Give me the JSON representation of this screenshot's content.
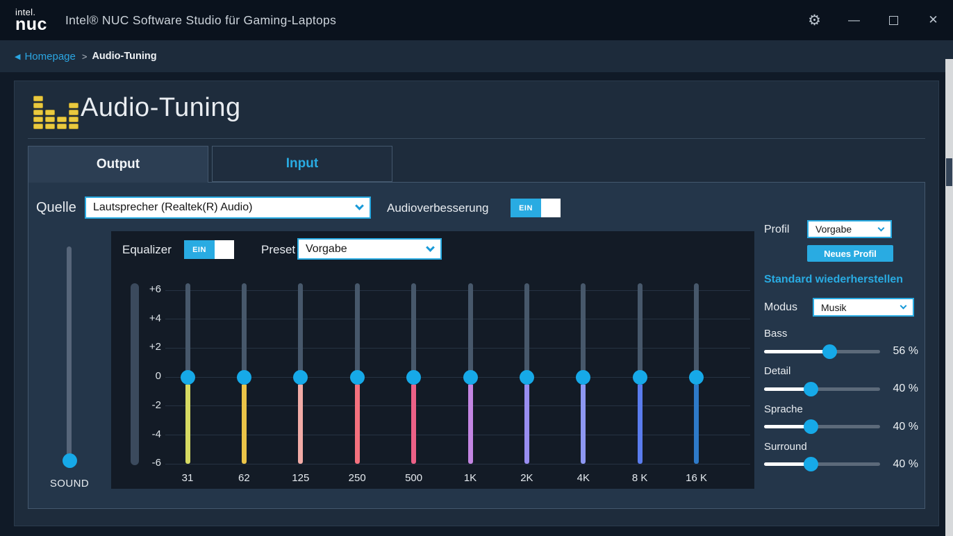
{
  "titlebar": {
    "logo": {
      "top": "intel.",
      "bottom": "nuc"
    },
    "title": "Intel® NUC Software Studio für Gaming-Laptops",
    "controls": {
      "settings_icon": "⚙",
      "minimize_icon": "—",
      "close_icon": "✕"
    }
  },
  "breadcrumb": {
    "back_icon": "◀",
    "home": "Homepage",
    "separator": ">",
    "current": "Audio-Tuning"
  },
  "page": {
    "title": "Audio-Tuning",
    "icon_bars": [
      5,
      3,
      2,
      4
    ]
  },
  "tabs": [
    {
      "label": "Output"
    },
    {
      "label": "Input"
    }
  ],
  "source": {
    "label": "Quelle",
    "value": "Lautsprecher (Realtek(R) Audio)"
  },
  "enhancement": {
    "label": "Audioverbesserung",
    "toggle": "EIN"
  },
  "equalizer": {
    "label": "Equalizer",
    "toggle": "EIN",
    "preset_label": "Preset",
    "preset_value": "Vorgabe",
    "scale_labels": [
      "+6",
      "+4",
      "+2",
      "0",
      "-2",
      "-4",
      "-6"
    ],
    "bands": [
      {
        "freq": "31",
        "db": 0,
        "color": "#d6da62"
      },
      {
        "freq": "62",
        "db": 0,
        "color": "#ebc448"
      },
      {
        "freq": "125",
        "db": 0,
        "color": "#f2aba6"
      },
      {
        "freq": "250",
        "db": 0,
        "color": "#f4717e"
      },
      {
        "freq": "500",
        "db": 0,
        "color": "#ec6187"
      },
      {
        "freq": "1K",
        "db": 0,
        "color": "#c385e2"
      },
      {
        "freq": "2K",
        "db": 0,
        "color": "#988df0"
      },
      {
        "freq": "4K",
        "db": 0,
        "color": "#8d97f2"
      },
      {
        "freq": "8 K",
        "db": 0,
        "color": "#5a7cee"
      },
      {
        "freq": "16 K",
        "db": 0,
        "color": "#2e7ac8"
      }
    ]
  },
  "sound": {
    "label": "SOUND"
  },
  "profile": {
    "label": "Profil",
    "value": "Vorgabe",
    "new_profile_button": "Neues Profil",
    "restore_default": "Standard wiederherstellen",
    "mode_label": "Modus",
    "mode_value": "Musik",
    "sliders": [
      {
        "label": "Bass",
        "value": "56 %",
        "percent": 56
      },
      {
        "label": "Detail",
        "value": "40 %",
        "percent": 40
      },
      {
        "label": "Sprache",
        "value": "40 %",
        "percent": 40
      },
      {
        "label": "Surround",
        "value": "40 %",
        "percent": 40
      }
    ]
  },
  "colors": {
    "accent": "#29abe2",
    "knob": "#16a9e8",
    "icon_yellow": "#e9c93f"
  }
}
